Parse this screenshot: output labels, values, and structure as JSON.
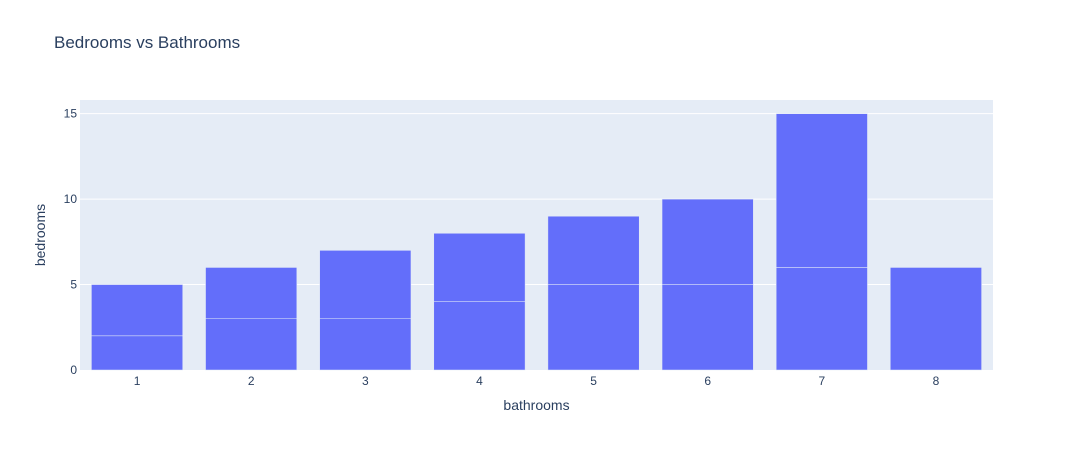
{
  "chart_data": {
    "type": "bar",
    "title": "Bedrooms vs Bathrooms",
    "xlabel": "bathrooms",
    "ylabel": "bedrooms",
    "categories": [
      "1",
      "2",
      "3",
      "4",
      "5",
      "6",
      "7",
      "8"
    ],
    "stacked_segments": [
      [
        2,
        3
      ],
      [
        3,
        3
      ],
      [
        3,
        4
      ],
      [
        4,
        4
      ],
      [
        5,
        4
      ],
      [
        5,
        5
      ],
      [
        6,
        9
      ],
      [
        6
      ]
    ],
    "totals": [
      5,
      6,
      7,
      8,
      9,
      10,
      15,
      6
    ],
    "ylim": [
      0,
      15.8
    ],
    "yticks": [
      0,
      5,
      10,
      15
    ],
    "grid": true,
    "legend": "none",
    "colors": {
      "bar": "#636efa",
      "plot_bg": "#e5ecf6",
      "grid": "#ffffff",
      "text": "#2a3f5f"
    }
  }
}
